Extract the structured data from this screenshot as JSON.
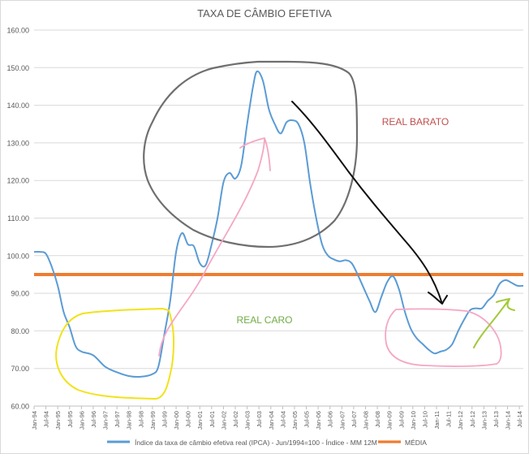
{
  "chart_data": {
    "type": "line",
    "title": "TAXA DE CÂMBIO EFETIVA",
    "ylim": [
      60,
      160
    ],
    "yticks": [
      60,
      70,
      80,
      90,
      100,
      110,
      120,
      130,
      140,
      150,
      160
    ],
    "ytick_labels": [
      "60.00",
      "70.00",
      "80.00",
      "90.00",
      "100.00",
      "110.00",
      "120.00",
      "130.00",
      "140.00",
      "150.00",
      "160.00"
    ],
    "x_start": "1994-01",
    "x_end": "2014-09",
    "x_tick_labels": [
      "Jan-94",
      "Jul-94",
      "Jan-95",
      "Jul-95",
      "Jan-96",
      "Jul-96",
      "Jan-97",
      "Jul-97",
      "Jan-98",
      "Jul-98",
      "Jan-99",
      "Jul-99",
      "Jan-00",
      "Jul-00",
      "Jan-01",
      "Jul-01",
      "Jan-02",
      "Jul-02",
      "Jan-03",
      "Jul-03",
      "Jan-04",
      "Jul-04",
      "Jan-05",
      "Jul-05",
      "Jan-06",
      "Jul-06",
      "Jan-07",
      "Jul-07",
      "Jan-08",
      "Jul-08",
      "Jan-09",
      "Jul-09",
      "Jan-10",
      "Jul-10",
      "Jan-11",
      "Jul-11",
      "Jan-12",
      "Jul-12",
      "Jan-13",
      "Jul-13",
      "Jan-14",
      "Jul-14"
    ],
    "series": [
      {
        "name": "Índice da taxa de câmbio efetiva real (IPCA) - Jun/1994=100 - Índice - MM 12M",
        "color": "#5b9bd5",
        "points": [
          [
            "1994-01",
            101.0
          ],
          [
            "1994-04",
            101.0
          ],
          [
            "1994-07",
            100.5
          ],
          [
            "1994-10",
            97.0
          ],
          [
            "1995-01",
            92.0
          ],
          [
            "1995-04",
            85.0
          ],
          [
            "1995-07",
            81.0
          ],
          [
            "1995-10",
            76.0
          ],
          [
            "1996-01",
            74.5
          ],
          [
            "1996-07",
            73.5
          ],
          [
            "1997-01",
            70.5
          ],
          [
            "1997-07",
            69.0
          ],
          [
            "1998-01",
            68.0
          ],
          [
            "1998-07",
            67.8
          ],
          [
            "1999-01",
            68.5
          ],
          [
            "1999-04",
            70.5
          ],
          [
            "1999-07",
            79.0
          ],
          [
            "1999-10",
            88.0
          ],
          [
            "2000-01",
            101.0
          ],
          [
            "2000-04",
            106.0
          ],
          [
            "2000-07",
            103.0
          ],
          [
            "2000-10",
            102.5
          ],
          [
            "2001-01",
            98.0
          ],
          [
            "2001-04",
            97.5
          ],
          [
            "2001-07",
            103.0
          ],
          [
            "2001-10",
            110.0
          ],
          [
            "2002-01",
            119.5
          ],
          [
            "2002-04",
            122.0
          ],
          [
            "2002-07",
            120.5
          ],
          [
            "2002-10",
            124.0
          ],
          [
            "2003-01",
            135.0
          ],
          [
            "2003-04",
            145.0
          ],
          [
            "2003-06",
            149.0
          ],
          [
            "2003-09",
            146.5
          ],
          [
            "2003-12",
            139.0
          ],
          [
            "2004-03",
            135.0
          ],
          [
            "2004-06",
            132.5
          ],
          [
            "2004-09",
            135.5
          ],
          [
            "2004-12",
            136.0
          ],
          [
            "2005-03",
            135.0
          ],
          [
            "2005-06",
            130.0
          ],
          [
            "2005-09",
            119.0
          ],
          [
            "2005-12",
            110.0
          ],
          [
            "2006-03",
            103.0
          ],
          [
            "2006-06",
            100.0
          ],
          [
            "2006-09",
            99.0
          ],
          [
            "2006-12",
            98.5
          ],
          [
            "2007-03",
            98.8
          ],
          [
            "2007-06",
            98.0
          ],
          [
            "2007-09",
            95.0
          ],
          [
            "2007-12",
            91.5
          ],
          [
            "2008-03",
            88.0
          ],
          [
            "2008-06",
            85.0
          ],
          [
            "2008-09",
            89.0
          ],
          [
            "2008-12",
            93.0
          ],
          [
            "2009-03",
            94.5
          ],
          [
            "2009-06",
            91.0
          ],
          [
            "2009-09",
            85.0
          ],
          [
            "2009-12",
            80.5
          ],
          [
            "2010-03",
            78.0
          ],
          [
            "2010-06",
            76.5
          ],
          [
            "2010-09",
            75.0
          ],
          [
            "2010-12",
            74.0
          ],
          [
            "2011-03",
            74.5
          ],
          [
            "2011-06",
            75.0
          ],
          [
            "2011-09",
            76.5
          ],
          [
            "2011-12",
            80.0
          ],
          [
            "2012-03",
            83.0
          ],
          [
            "2012-06",
            85.5
          ],
          [
            "2012-09",
            86.0
          ],
          [
            "2012-12",
            86.0
          ],
          [
            "2013-03",
            88.0
          ],
          [
            "2013-06",
            89.5
          ],
          [
            "2013-09",
            92.5
          ],
          [
            "2013-12",
            93.5
          ],
          [
            "2014-03",
            92.8
          ],
          [
            "2014-06",
            92.0
          ],
          [
            "2014-09",
            92.0
          ]
        ]
      },
      {
        "name": "MÉDIA",
        "color": "#ed7d31",
        "value": 95.0
      }
    ],
    "annotations": [
      {
        "text": "REAL BARATO",
        "color": "#c0504d"
      },
      {
        "text": "REAL CARO",
        "color": "#70ad47"
      }
    ]
  }
}
